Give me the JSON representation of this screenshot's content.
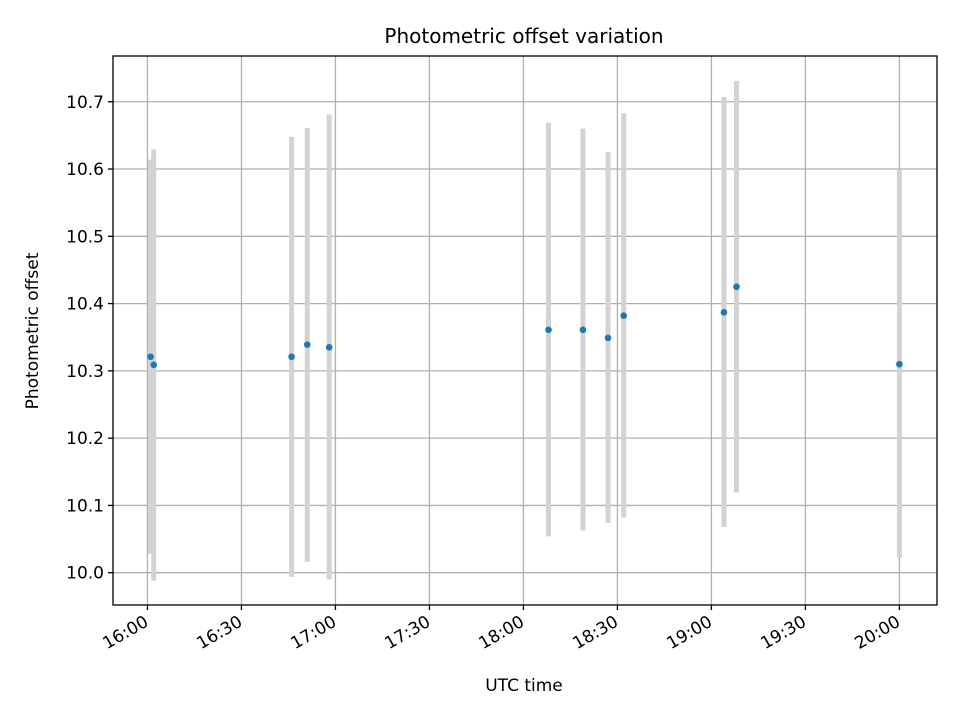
{
  "chart_data": {
    "type": "scatter",
    "title": "Photometric offset variation",
    "xlabel": "UTC time",
    "ylabel": "Photometric offset",
    "x_tick_labels": [
      "16:00",
      "16:30",
      "17:00",
      "17:30",
      "18:00",
      "18:30",
      "19:00",
      "19:30",
      "20:00"
    ],
    "y_tick_labels": [
      "10.0",
      "10.1",
      "10.2",
      "10.3",
      "10.4",
      "10.5",
      "10.6",
      "10.7"
    ],
    "x_ticks": [
      "16:00",
      "16:30",
      "17:00",
      "17:30",
      "18:00",
      "18:30",
      "19:00",
      "19:30",
      "20:00"
    ],
    "y_ticks": [
      10.0,
      10.1,
      10.2,
      10.3,
      10.4,
      10.5,
      10.6,
      10.7
    ],
    "xlim": [
      "15:49",
      "20:12"
    ],
    "ylim": [
      9.952,
      10.768
    ],
    "grid": true,
    "colors": {
      "points": "#1f77b4",
      "error_bars": "#d3d3d3",
      "grid": "#b0b0b0"
    },
    "series": [
      {
        "points": [
          {
            "x": "16:01",
            "y": 10.321,
            "ylow": 10.028,
            "yhigh": 10.614
          },
          {
            "x": "16:02",
            "y": 10.309,
            "ylow": 9.988,
            "yhigh": 10.629
          },
          {
            "x": "16:46",
            "y": 10.321,
            "ylow": 9.994,
            "yhigh": 10.648
          },
          {
            "x": "16:51",
            "y": 10.339,
            "ylow": 10.016,
            "yhigh": 10.661
          },
          {
            "x": "16:58",
            "y": 10.335,
            "ylow": 9.99,
            "yhigh": 10.681
          },
          {
            "x": "18:08",
            "y": 10.361,
            "ylow": 10.054,
            "yhigh": 10.669
          },
          {
            "x": "18:19",
            "y": 10.361,
            "ylow": 10.063,
            "yhigh": 10.66
          },
          {
            "x": "18:27",
            "y": 10.349,
            "ylow": 10.074,
            "yhigh": 10.625
          },
          {
            "x": "18:32",
            "y": 10.382,
            "ylow": 10.082,
            "yhigh": 10.683
          },
          {
            "x": "19:04",
            "y": 10.387,
            "ylow": 10.068,
            "yhigh": 10.707
          },
          {
            "x": "19:08",
            "y": 10.425,
            "ylow": 10.119,
            "yhigh": 10.731
          },
          {
            "x": "20:00",
            "y": 10.31,
            "ylow": 10.022,
            "yhigh": 10.598
          }
        ]
      }
    ]
  }
}
